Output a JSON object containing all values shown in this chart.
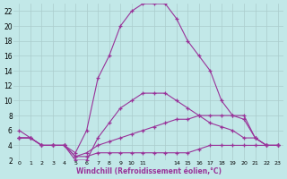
{
  "xlabel": "Windchill (Refroidissement éolien,°C)",
  "bg_color": "#c2e8e8",
  "grid_color": "#aacccc",
  "line_color": "#993399",
  "x_tick_labels": [
    "0",
    "1",
    "2",
    "3",
    "4",
    "5",
    "6",
    "7",
    "8",
    "9",
    "10",
    "11",
    "",
    "",
    "14",
    "15",
    "16",
    "17",
    "18",
    "19",
    "20",
    "21",
    "22",
    "23"
  ],
  "ylim": [
    2,
    23
  ],
  "y_ticks": [
    2,
    4,
    6,
    8,
    10,
    12,
    14,
    16,
    18,
    20,
    22
  ],
  "n_points": 24,
  "line1": [
    6,
    5,
    4,
    4,
    4,
    3,
    6,
    13,
    16,
    20,
    22,
    23,
    23,
    23,
    21,
    18,
    16,
    14,
    10,
    8,
    8,
    5,
    4,
    4
  ],
  "line2": [
    5,
    5,
    4,
    4,
    4,
    2,
    2,
    5,
    7,
    9,
    10,
    11,
    11,
    11,
    10,
    9,
    8,
    7,
    6.5,
    6,
    5,
    5,
    4,
    4
  ],
  "line3": [
    5,
    5,
    4,
    4,
    4,
    2.5,
    3,
    4,
    4.5,
    5,
    5.5,
    6,
    6.5,
    7,
    7.5,
    7.5,
    8,
    8,
    8,
    8,
    7.5,
    5,
    4,
    4
  ],
  "line4": [
    5,
    5,
    4,
    4,
    4,
    2.5,
    2.5,
    3,
    3,
    3,
    3,
    3,
    3,
    3,
    3,
    3,
    3.5,
    4,
    4,
    4,
    4,
    4,
    4,
    4
  ]
}
